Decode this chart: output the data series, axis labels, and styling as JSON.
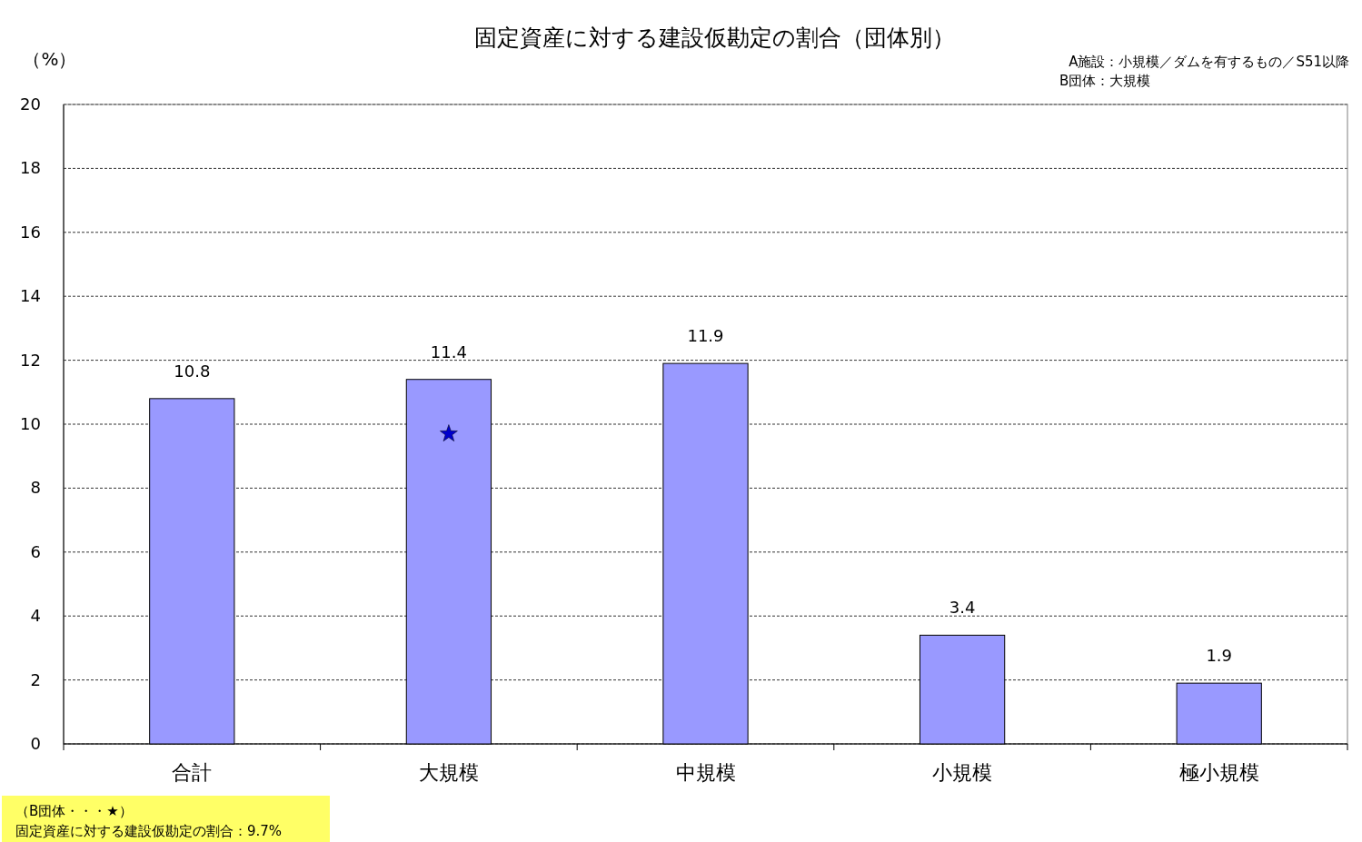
{
  "chart_data": {
    "type": "bar",
    "title": "固定資産に対する建設仮勘定の割合（団体別）",
    "ylabel": "（%）",
    "annotations": [
      "A施設：小規模／ダムを有するもの／S51以降",
      "B団体：大規模",
      "（B団体・・・★）",
      "固定資産に対する建設仮勘定の割合：9.7%"
    ],
    "categories": [
      "合計",
      "大規模",
      "中規模",
      "小規模",
      "極小規模"
    ],
    "series": [
      {
        "color": "#9999ff",
        "values": [
          10.8,
          11.4,
          11.9,
          3.4,
          1.9
        ],
        "value_labels": [
          "10.8",
          "11.4",
          "11.9",
          "3.4",
          "1.9"
        ]
      },
      {
        "type": "scatter",
        "x": [
          "大規模"
        ],
        "values": [
          9.7
        ],
        "color": "#0000cc",
        "marker": "star"
      }
    ],
    "ylim": [
      0,
      20
    ],
    "yticks": [
      0,
      2,
      4,
      6,
      8,
      10,
      12,
      14,
      16,
      18,
      20
    ],
    "grid": "y"
  }
}
